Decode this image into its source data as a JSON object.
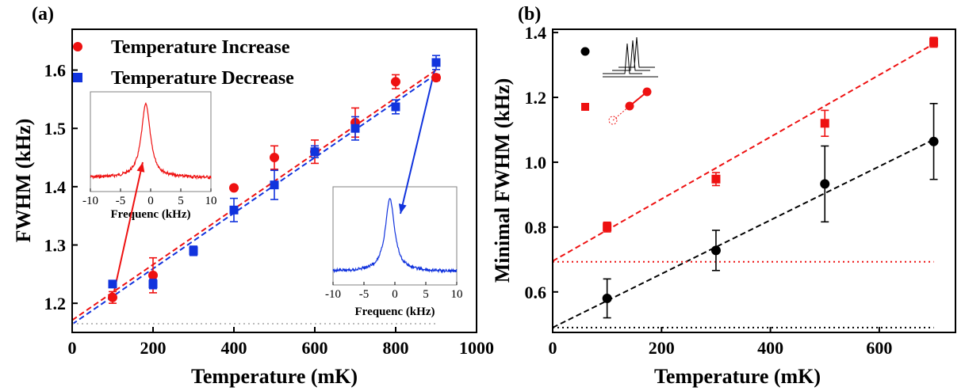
{
  "chart_data": [
    {
      "panel_label": "(a)",
      "type": "scatter",
      "xlabel": "Temperature (mK)",
      "ylabel": "FWHM (kHz)",
      "xlim": [
        0,
        1000
      ],
      "ylim": [
        1.15,
        1.67
      ],
      "x_ticks": [
        "0",
        "200",
        "400",
        "600",
        "800",
        "1000"
      ],
      "y_ticks": [
        "1.2",
        "1.3",
        "1.4",
        "1.5",
        "1.6"
      ],
      "grid": false,
      "legend_position": "top-left",
      "series": [
        {
          "name": "Temperature Increase",
          "marker": "circle",
          "color": "#ee1111",
          "x": [
            100,
            200,
            400,
            500,
            600,
            700,
            800,
            900
          ],
          "y": [
            1.21,
            1.248,
            1.398,
            1.45,
            1.46,
            1.51,
            1.58,
            1.587
          ],
          "err": [
            0.01,
            0.03,
            0.0,
            0.02,
            0.02,
            0.025,
            0.012,
            0.005
          ]
        },
        {
          "name": "Temperature Decrease",
          "marker": "square",
          "color": "#1133dd",
          "x": [
            100,
            200,
            300,
            400,
            500,
            600,
            700,
            800,
            900
          ],
          "y": [
            1.233,
            1.233,
            1.29,
            1.36,
            1.403,
            1.46,
            1.5,
            1.537,
            1.613
          ],
          "err": [
            0.0,
            0.008,
            0.008,
            0.02,
            0.025,
            0.01,
            0.02,
            0.012,
            0.012
          ]
        }
      ],
      "fits": [
        {
          "color": "#ee1111",
          "style": "dashed",
          "x": [
            0,
            900
          ],
          "y": [
            1.171,
            1.6
          ]
        },
        {
          "color": "#1133dd",
          "style": "dashed",
          "x": [
            0,
            900
          ],
          "y": [
            1.164,
            1.593
          ]
        },
        {
          "color": "#bbbbbb",
          "style": "dotted",
          "x": [
            0,
            900
          ],
          "y": [
            1.165,
            1.165
          ]
        }
      ],
      "insets": [
        {
          "color": "#ee1111",
          "xlabel": "Frequenc (kHz)",
          "x_ticks": [
            "-10",
            "-5",
            "0",
            "5",
            "10"
          ],
          "arrow_to_point": [
            100,
            1.21
          ]
        },
        {
          "color": "#1133dd",
          "xlabel": "Frequenc (kHz)",
          "x_ticks": [
            "-10",
            "-5",
            "0",
            "5",
            "10"
          ],
          "arrow_to_point": [
            900,
            1.613
          ]
        }
      ]
    },
    {
      "panel_label": "(b)",
      "type": "scatter",
      "xlabel": "Temperature (mK)",
      "ylabel": "Minimal FWHM (kHz)",
      "xlim": [
        0,
        740
      ],
      "ylim": [
        0.475,
        1.41
      ],
      "x_ticks": [
        "0",
        "200",
        "400",
        "600"
      ],
      "y_ticks": [
        "0.6",
        "0.8",
        "1.0",
        "1.2",
        "1.4"
      ],
      "grid": false,
      "series": [
        {
          "marker": "square",
          "color": "#ee1111",
          "x": [
            100,
            300,
            500,
            700
          ],
          "y": [
            0.8,
            0.948,
            1.12,
            1.37
          ],
          "err": [
            0.015,
            0.02,
            0.04,
            0.015
          ]
        },
        {
          "marker": "circle",
          "color": "#000000",
          "x": [
            100,
            300,
            500,
            700
          ],
          "y": [
            0.58,
            0.728,
            0.933,
            1.064
          ],
          "err": [
            0.06,
            0.062,
            0.117,
            0.117
          ]
        }
      ],
      "fits": [
        {
          "color": "#ee1111",
          "style": "dashed",
          "x": [
            0,
            700
          ],
          "y": [
            0.695,
            1.365
          ]
        },
        {
          "color": "#000000",
          "style": "dashed",
          "x": [
            0,
            700
          ],
          "y": [
            0.49,
            1.07
          ]
        },
        {
          "color": "#ee1111",
          "style": "dotted",
          "x": [
            0,
            700
          ],
          "y": [
            0.693,
            0.693
          ]
        },
        {
          "color": "#000000",
          "style": "dotted",
          "x": [
            0,
            700
          ],
          "y": [
            0.49,
            0.49
          ]
        }
      ],
      "legend_icons": [
        "spectrum-peaks",
        "pendulum-diagram"
      ]
    }
  ]
}
